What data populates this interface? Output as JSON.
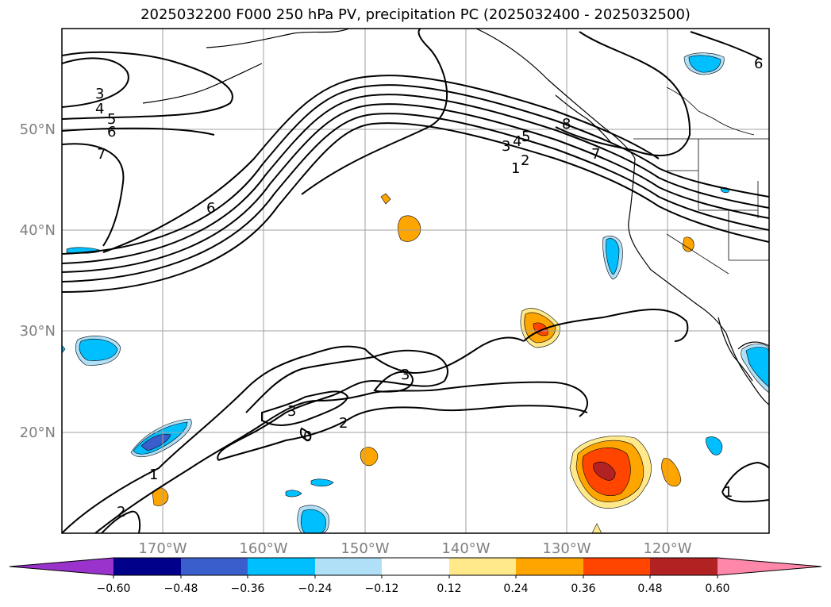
{
  "title": "2025032200 F000 250 hPa PV, precipitation PC (2025032400 - 2025032500)",
  "map": {
    "lon_range": [
      -180,
      -110
    ],
    "lat_range": [
      10,
      60
    ],
    "lat_ticks": [
      "50°N",
      "40°N",
      "30°N",
      "20°N"
    ],
    "lon_ticks": [
      "170°W",
      "160°W",
      "150°W",
      "140°W",
      "130°W",
      "120°W"
    ],
    "grid": true,
    "pv_contour_labels": [
      "3",
      "4",
      "5",
      "6",
      "7",
      "6",
      "8",
      "7",
      "3",
      "4",
      "5",
      "2",
      "1",
      "6",
      "3",
      "3",
      "2",
      "0",
      "1",
      "2",
      "1"
    ]
  },
  "colorbar": {
    "tick_labels": [
      "−0.60",
      "−0.48",
      "−0.36",
      "−0.24",
      "−0.12",
      "0.12",
      "0.24",
      "0.36",
      "0.48",
      "0.60"
    ],
    "colors": [
      "#9933cc",
      "#00008b",
      "#3a5fcd",
      "#00bfff",
      "#afe0f7",
      "#ffffff",
      "#ffe98a",
      "#ffa500",
      "#ff4500",
      "#b22222",
      "#ff88aa"
    ]
  }
}
